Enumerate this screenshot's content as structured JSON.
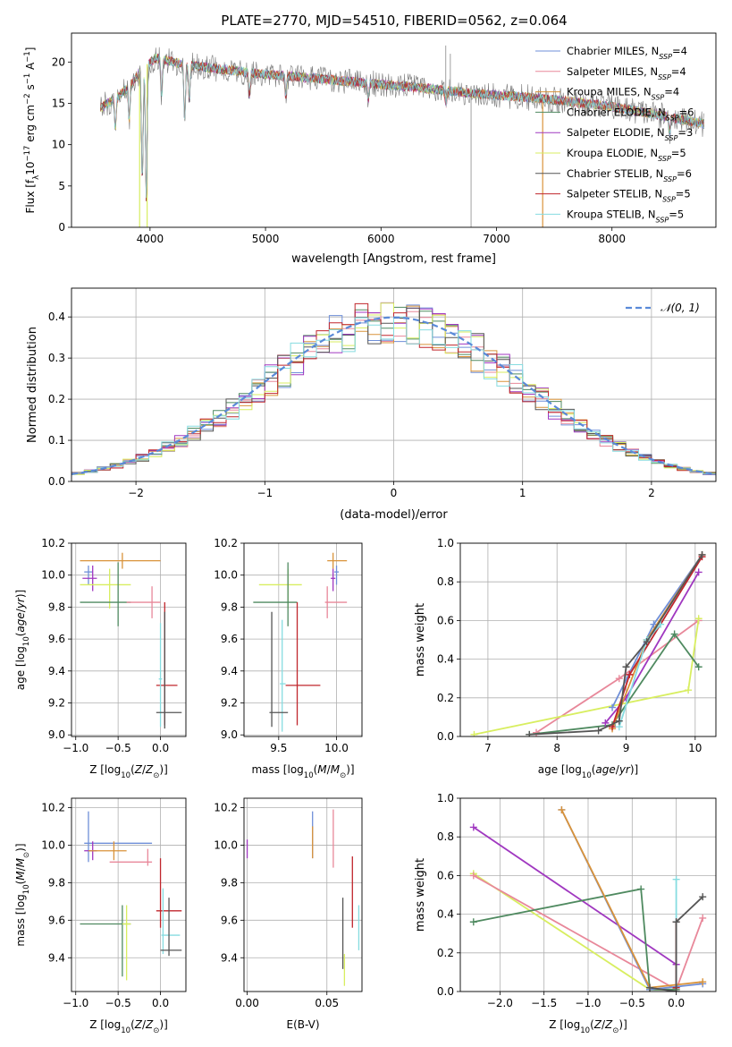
{
  "figure": {
    "title": "PLATE=2770, MJD=54510, FIBERID=0562, z=0.064"
  },
  "legend_entries": [
    {
      "label": "Chabrier MILES, N",
      "sub": "SSP",
      "tail": "=4",
      "color": "#6f8fd8"
    },
    {
      "label": "Salpeter MILES, N",
      "sub": "SSP",
      "tail": "=4",
      "color": "#e8889a"
    },
    {
      "label": "Kroupa MILES, N",
      "sub": "SSP",
      "tail": "=4",
      "color": "#d9933a"
    },
    {
      "label": "Chabrier ELODIE, N",
      "sub": "SSP",
      "tail": "=6",
      "color": "#4f8a60"
    },
    {
      "label": "Salpeter ELODIE, N",
      "sub": "SSP",
      "tail": "=3",
      "color": "#a038c0"
    },
    {
      "label": "Kroupa ELODIE, N",
      "sub": "SSP",
      "tail": "=5",
      "color": "#d8ee60"
    },
    {
      "label": "Chabrier STELIB, N",
      "sub": "SSP",
      "tail": "=6",
      "color": "#555555"
    },
    {
      "label": "Salpeter STELIB, N",
      "sub": "SSP",
      "tail": "=5",
      "color": "#c0262c"
    },
    {
      "label": "Kroupa STELIB, N",
      "sub": "SSP",
      "tail": "=5",
      "color": "#86dce0"
    }
  ],
  "chart_data": [
    {
      "id": "spectrum",
      "type": "line",
      "xlabel": "wavelength [Angstrom, rest frame]",
      "ylabel": "Flux [f_λ10^-17 erg cm^-2 s^-1 A^-1]",
      "xlim": [
        3320,
        8900
      ],
      "ylim": [
        0,
        23.5
      ],
      "xticks": [
        4000,
        5000,
        6000,
        7000,
        8000
      ],
      "yticks": [
        0,
        5,
        10,
        15,
        20
      ],
      "grid": false,
      "legend": "upper right",
      "continuum": [
        [
          3570,
          14.5
        ],
        [
          3700,
          15.5
        ],
        [
          3850,
          17.5
        ],
        [
          3950,
          19.5
        ],
        [
          4050,
          20.5
        ],
        [
          4200,
          20.0
        ],
        [
          4400,
          19.5
        ],
        [
          4700,
          19.0
        ],
        [
          5000,
          18.5
        ],
        [
          5300,
          18.2
        ],
        [
          5600,
          17.8
        ],
        [
          6000,
          17.3
        ],
        [
          6400,
          16.8
        ],
        [
          6800,
          16.2
        ],
        [
          7200,
          15.8
        ],
        [
          7600,
          15.3
        ],
        [
          8000,
          14.6
        ],
        [
          8400,
          13.6
        ],
        [
          8800,
          12.5
        ]
      ],
      "absorption": [
        [
          3700,
          12.0
        ],
        [
          3820,
          13.0
        ],
        [
          3933,
          5.5
        ],
        [
          3968,
          3.0
        ],
        [
          4101,
          16.0
        ],
        [
          4300,
          12.8
        ],
        [
          4340,
          15.5
        ],
        [
          4861,
          16.0
        ],
        [
          5175,
          16.0
        ],
        [
          5890,
          15.5
        ],
        [
          6563,
          15.0
        ],
        [
          8500,
          11.5
        ]
      ],
      "spikes": [
        [
          3910,
          0
        ],
        [
          3975,
          0
        ],
        [
          6780,
          0
        ],
        [
          7400,
          0
        ],
        [
          6560,
          22
        ],
        [
          6600,
          21
        ]
      ]
    },
    {
      "id": "residual-hist",
      "type": "histogram",
      "xlabel": "(data-model)/error",
      "ylabel": "Normed distribution",
      "xlim": [
        -2.5,
        2.5
      ],
      "ylim": [
        0,
        0.47
      ],
      "xticks": [
        -2,
        -1,
        0,
        1,
        2
      ],
      "yticks": [
        0.0,
        0.1,
        0.2,
        0.3,
        0.4
      ],
      "grid": true,
      "legend": "upper right",
      "reference_curve": {
        "label": "𝒩(0, 1)",
        "mean": 0,
        "sigma": 1,
        "color": "#5a8ad8"
      },
      "bin_width": 0.1
    },
    {
      "id": "age-vs-Z",
      "type": "errorbar",
      "xlabel": "Z [log10(Z/Z⊙)]",
      "ylabel": "age [log10(age/yr)]",
      "xlim": [
        -1.05,
        0.3
      ],
      "ylim": [
        8.99,
        10.2
      ],
      "xticks": [
        -1.0,
        -0.5,
        0.0
      ],
      "yticks": [
        9.0,
        9.2,
        9.4,
        9.6,
        9.8,
        10.0,
        10.2
      ],
      "grid": true,
      "points": [
        {
          "x": -0.45,
          "y": 10.09,
          "xerr": [
            0.5,
            0.45
          ],
          "yerr": [
            0.05,
            0.05
          ],
          "color": "#d9933a"
        },
        {
          "x": -0.85,
          "y": 10.02,
          "xerr": [
            0.05,
            0.05
          ],
          "yerr": [
            0.08,
            0.04
          ],
          "color": "#6f8fd8"
        },
        {
          "x": -0.8,
          "y": 9.98,
          "xerr": [
            0.12,
            0.05
          ],
          "yerr": [
            0.08,
            0.08
          ],
          "color": "#a038c0"
        },
        {
          "x": -0.6,
          "y": 9.94,
          "xerr": [
            0.35,
            0.25
          ],
          "yerr": [
            0.15,
            0.1
          ],
          "color": "#d8ee60"
        },
        {
          "x": -0.5,
          "y": 9.83,
          "xerr": [
            0.45,
            0.15
          ],
          "yerr": [
            0.15,
            0.25
          ],
          "color": "#4f8a60"
        },
        {
          "x": -0.1,
          "y": 9.83,
          "xerr": [
            0.3,
            0.1
          ],
          "yerr": [
            0.1,
            0.1
          ],
          "color": "#e8889a"
        },
        {
          "x": 0.05,
          "y": 9.31,
          "xerr": [
            0.1,
            0.15
          ],
          "yerr": [
            0.25,
            0.52
          ],
          "color": "#c0262c"
        },
        {
          "x": 0.0,
          "y": 9.35,
          "xerr": [
            0.02,
            0.02
          ],
          "yerr": [
            0.3,
            0.35
          ],
          "color": "#86dce0"
        },
        {
          "x": 0.05,
          "y": 9.14,
          "xerr": [
            0.1,
            0.2
          ],
          "yerr": [
            0.1,
            0.63
          ],
          "color": "#555555"
        }
      ]
    },
    {
      "id": "age-vs-mass",
      "type": "errorbar",
      "xlabel": "mass [log10(M/M⊙)]",
      "ylabel": "",
      "xlim": [
        9.2,
        10.22
      ],
      "ylim": [
        8.99,
        10.2
      ],
      "xticks": [
        9.5,
        10.0
      ],
      "yticks": [
        9.0,
        9.2,
        9.4,
        9.6,
        9.8,
        10.0,
        10.2
      ],
      "grid": true,
      "points": [
        {
          "x": 9.97,
          "y": 10.09,
          "xerr": [
            0.05,
            0.12
          ],
          "yerr": [
            0.05,
            0.05
          ],
          "color": "#d9933a"
        },
        {
          "x": 10.0,
          "y": 10.02,
          "xerr": [
            0.02,
            0.02
          ],
          "yerr": [
            0.08,
            0.04
          ],
          "color": "#6f8fd8"
        },
        {
          "x": 9.97,
          "y": 9.98,
          "xerr": [
            0.02,
            0.02
          ],
          "yerr": [
            0.08,
            0.06
          ],
          "color": "#a038c0"
        },
        {
          "x": 9.58,
          "y": 9.94,
          "xerr": [
            0.25,
            0.12
          ],
          "yerr": [
            0.15,
            0.1
          ],
          "color": "#d8ee60"
        },
        {
          "x": 9.58,
          "y": 9.83,
          "xerr": [
            0.3,
            0.08
          ],
          "yerr": [
            0.15,
            0.25
          ],
          "color": "#4f8a60"
        },
        {
          "x": 9.92,
          "y": 9.83,
          "xerr": [
            0.02,
            0.17
          ],
          "yerr": [
            0.1,
            0.1
          ],
          "color": "#e8889a"
        },
        {
          "x": 9.66,
          "y": 9.31,
          "xerr": [
            0.1,
            0.2
          ],
          "yerr": [
            0.25,
            0.52
          ],
          "color": "#c0262c"
        },
        {
          "x": 9.53,
          "y": 9.32,
          "xerr": [
            0.02,
            0.03
          ],
          "yerr": [
            0.3,
            0.4
          ],
          "color": "#86dce0"
        },
        {
          "x": 9.44,
          "y": 9.14,
          "xerr": [
            0.02,
            0.14
          ],
          "yerr": [
            0.09,
            0.63
          ],
          "color": "#555555"
        }
      ]
    },
    {
      "id": "weight-vs-age",
      "type": "line",
      "xlabel": "age [log10(age/yr)]",
      "ylabel": "mass weight",
      "xlim": [
        6.6,
        10.3
      ],
      "ylim": [
        0,
        1.0
      ],
      "xticks": [
        7,
        8,
        9,
        10
      ],
      "yticks": [
        0.0,
        0.2,
        0.4,
        0.6,
        0.8,
        1.0
      ],
      "grid": true,
      "series": [
        {
          "color": "#e8889a",
          "x": [
            7.7,
            8.9,
            10.05
          ],
          "y": [
            0.02,
            0.3,
            0.6
          ]
        },
        {
          "color": "#d8ee60",
          "x": [
            6.8,
            9.9,
            10.05
          ],
          "y": [
            0.01,
            0.24,
            0.61
          ]
        },
        {
          "color": "#4f8a60",
          "x": [
            7.6,
            8.8,
            9.7,
            10.05
          ],
          "y": [
            0.01,
            0.06,
            0.53,
            0.36
          ]
        },
        {
          "color": "#a038c0",
          "x": [
            8.7,
            9.0,
            10.05
          ],
          "y": [
            0.07,
            0.2,
            0.85
          ]
        },
        {
          "color": "#6f8fd8",
          "x": [
            8.8,
            9.4,
            10.1
          ],
          "y": [
            0.15,
            0.58,
            0.94
          ]
        },
        {
          "color": "#d9933a",
          "x": [
            8.8,
            9.3,
            10.1
          ],
          "y": [
            0.04,
            0.5,
            0.94
          ]
        },
        {
          "color": "#c0262c",
          "x": [
            8.8,
            9.05,
            10.1
          ],
          "y": [
            0.05,
            0.32,
            0.93
          ]
        },
        {
          "color": "#86dce0",
          "x": [
            8.9,
            9.3,
            9.5
          ],
          "y": [
            0.05,
            0.5,
            0.58
          ]
        },
        {
          "color": "#555555",
          "x": [
            7.6,
            8.6,
            8.9,
            9.0,
            9.3,
            10.1
          ],
          "y": [
            0.01,
            0.03,
            0.08,
            0.36,
            0.49,
            0.94
          ]
        }
      ]
    },
    {
      "id": "mass-vs-Z",
      "type": "errorbar",
      "xlabel": "Z [log10(Z/Z⊙)]",
      "ylabel": "mass [log10(M/M⊙)]",
      "xlim": [
        -1.05,
        0.3
      ],
      "ylim": [
        9.22,
        10.25
      ],
      "xticks": [
        -1.0,
        -0.5,
        0.0
      ],
      "yticks": [
        9.4,
        9.6,
        9.8,
        10.0,
        10.2
      ],
      "grid": true,
      "points": [
        {
          "x": -0.85,
          "y": 10.01,
          "xerr": [
            0.05,
            0.75
          ],
          "yerr": [
            0.1,
            0.17
          ],
          "color": "#6f8fd8"
        },
        {
          "x": -0.8,
          "y": 9.97,
          "xerr": [
            0.1,
            0.05
          ],
          "yerr": [
            0.05,
            0.05
          ],
          "color": "#a038c0"
        },
        {
          "x": -0.55,
          "y": 9.97,
          "xerr": [
            0.3,
            0.15
          ],
          "yerr": [
            0.05,
            0.05
          ],
          "color": "#d9933a"
        },
        {
          "x": -0.15,
          "y": 9.91,
          "xerr": [
            0.45,
            0.05
          ],
          "yerr": [
            0.02,
            0.07
          ],
          "color": "#e8889a"
        },
        {
          "x": 0.0,
          "y": 9.65,
          "xerr": [
            0.05,
            0.25
          ],
          "yerr": [
            0.09,
            0.28
          ],
          "color": "#c0262c"
        },
        {
          "x": -0.45,
          "y": 9.58,
          "xerr": [
            0.5,
            0.1
          ],
          "yerr": [
            0.28,
            0.1
          ],
          "color": "#4f8a60"
        },
        {
          "x": -0.4,
          "y": 9.58,
          "xerr": [
            0.05,
            0.05
          ],
          "yerr": [
            0.3,
            0.1
          ],
          "color": "#d8ee60"
        },
        {
          "x": 0.03,
          "y": 9.52,
          "xerr": [
            0.02,
            0.2
          ],
          "yerr": [
            0.1,
            0.25
          ],
          "color": "#86dce0"
        },
        {
          "x": 0.1,
          "y": 9.44,
          "xerr": [
            0.1,
            0.15
          ],
          "yerr": [
            0.03,
            0.28
          ],
          "color": "#555555"
        }
      ]
    },
    {
      "id": "mass-vs-ebv",
      "type": "errorbar",
      "xlabel": "E(B-V)",
      "ylabel": "",
      "xlim": [
        -0.002,
        0.072
      ],
      "ylim": [
        9.22,
        10.25
      ],
      "xticks": [
        0.0,
        0.05
      ],
      "xtick_labels": [
        "0.00",
        "0.05"
      ],
      "yticks": [
        9.4,
        9.6,
        9.8,
        10.0,
        10.2
      ],
      "grid": true,
      "points": [
        {
          "x": 0.0,
          "y": 9.98,
          "xerr": [
            0,
            0
          ],
          "yerr": [
            0.05,
            0.05
          ],
          "color": "#a038c0"
        },
        {
          "x": 0.041,
          "y": 10.0,
          "xerr": [
            0,
            0
          ],
          "yerr": [
            0.07,
            0.18
          ],
          "color": "#6f8fd8"
        },
        {
          "x": 0.041,
          "y": 10.0,
          "xerr": [
            0,
            0
          ],
          "yerr": [
            0.07,
            0.1
          ],
          "color": "#d9933a"
        },
        {
          "x": 0.054,
          "y": 9.96,
          "xerr": [
            0,
            0
          ],
          "yerr": [
            0.08,
            0.23
          ],
          "color": "#e8889a"
        },
        {
          "x": 0.06,
          "y": 9.52,
          "xerr": [
            0,
            0
          ],
          "yerr": [
            0.18,
            0.2
          ],
          "color": "#555555"
        },
        {
          "x": 0.061,
          "y": 9.32,
          "xerr": [
            0,
            0
          ],
          "yerr": [
            0.07,
            0.1
          ],
          "color": "#d8ee60"
        },
        {
          "x": 0.066,
          "y": 9.72,
          "xerr": [
            0,
            0
          ],
          "yerr": [
            0.16,
            0.22
          ],
          "color": "#c0262c"
        },
        {
          "x": 0.07,
          "y": 9.56,
          "xerr": [
            0,
            0
          ],
          "yerr": [
            0.12,
            0.12
          ],
          "color": "#86dce0"
        }
      ]
    },
    {
      "id": "weight-vs-Z",
      "type": "line",
      "xlabel": "Z [log10(Z/Z⊙)]",
      "ylabel": "mass weight",
      "xlim": [
        -2.45,
        0.45
      ],
      "ylim": [
        0,
        1.0
      ],
      "xticks": [
        -2.0,
        -1.5,
        -1.0,
        -0.5,
        0.0
      ],
      "yticks": [
        0.0,
        0.2,
        0.4,
        0.6,
        0.8,
        1.0
      ],
      "grid": true,
      "series": [
        {
          "color": "#a038c0",
          "x": [
            -2.3,
            0.0
          ],
          "y": [
            0.85,
            0.14
          ]
        },
        {
          "color": "#d8ee60",
          "x": [
            -2.3,
            -0.3,
            0.0
          ],
          "y": [
            0.61,
            0.01,
            0.01
          ]
        },
        {
          "color": "#e8889a",
          "x": [
            -2.3,
            0.0,
            0.3
          ],
          "y": [
            0.6,
            0.01,
            0.38
          ]
        },
        {
          "color": "#4f8a60",
          "x": [
            -2.3,
            -0.4,
            -0.3,
            0.0
          ],
          "y": [
            0.36,
            0.53,
            0.01,
            0.01
          ]
        },
        {
          "color": "#6f8fd8",
          "x": [
            -1.3,
            -0.3,
            0.3
          ],
          "y": [
            0.94,
            0.01,
            0.04
          ]
        },
        {
          "color": "#d9933a",
          "x": [
            -1.3,
            -0.3,
            0.3
          ],
          "y": [
            0.94,
            0.02,
            0.05
          ]
        },
        {
          "color": "#86dce0",
          "x": [
            0.0,
            0.0
          ],
          "y": [
            0.02,
            0.58
          ]
        },
        {
          "color": "#c0262c",
          "x": [
            0.0,
            0.0
          ],
          "y": [
            0.02,
            0.36
          ]
        },
        {
          "color": "#555555",
          "x": [
            -0.3,
            0.0,
            0.0,
            0.3
          ],
          "y": [
            0.02,
            0.0,
            0.36,
            0.49
          ]
        }
      ]
    }
  ]
}
